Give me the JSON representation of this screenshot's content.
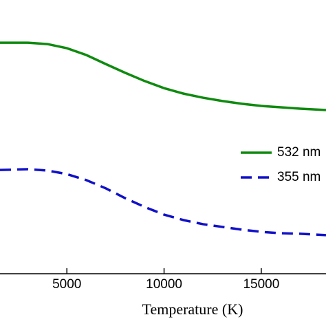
{
  "chart_data": {
    "type": "line",
    "x_label": "Temperature (K)",
    "x": [
      1560,
      3000,
      4000,
      5000,
      6000,
      7000,
      8000,
      9000,
      10000,
      11000,
      12000,
      13000,
      14000,
      15000,
      16000,
      17000,
      18330
    ],
    "series": [
      {
        "name": "532 nm",
        "color": "#0f8a0f",
        "dash": "solid",
        "values": [
          0.844,
          0.844,
          0.839,
          0.824,
          0.799,
          0.766,
          0.734,
          0.704,
          0.678,
          0.658,
          0.643,
          0.631,
          0.621,
          0.613,
          0.608,
          0.603,
          0.598
        ]
      },
      {
        "name": "355 nm",
        "color": "#1010c8",
        "dash": "dashed",
        "values": [
          0.379,
          0.382,
          0.377,
          0.364,
          0.342,
          0.312,
          0.276,
          0.244,
          0.216,
          0.196,
          0.181,
          0.171,
          0.161,
          0.153,
          0.148,
          0.146,
          0.141
        ]
      }
    ],
    "xlim": [
      1560,
      18330
    ],
    "ylim": [
      0,
      1
    ],
    "xticks": [
      5000,
      10000,
      15000
    ],
    "legend": "right"
  }
}
